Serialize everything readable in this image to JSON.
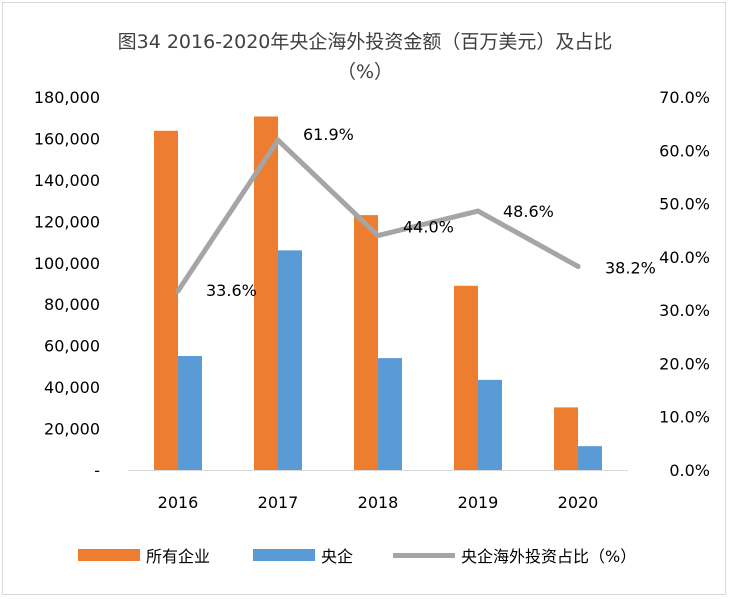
{
  "chart_data": {
    "type": "bar",
    "title": "图34 2016-2020年央企海外投资金额（百万美元）及占比",
    "title_line2": "（%）",
    "categories": [
      "2016",
      "2017",
      "2018",
      "2019",
      "2020"
    ],
    "series": [
      {
        "name": "所有企业",
        "type": "bar",
        "axis": "left",
        "color": "#ED7D31",
        "values": [
          163700,
          170600,
          123000,
          88900,
          30200
        ]
      },
      {
        "name": "央企",
        "type": "bar",
        "axis": "left",
        "color": "#5B9BD5",
        "values": [
          55000,
          106000,
          54000,
          43500,
          11500
        ]
      },
      {
        "name": "央企海外投资占比（%）",
        "type": "line",
        "axis": "right",
        "color": "#A5A5A5",
        "values": [
          33.6,
          61.9,
          44.0,
          48.6,
          38.2
        ],
        "labels": [
          "33.6%",
          "61.9%",
          "44.0%",
          "48.6%",
          "38.2%"
        ]
      }
    ],
    "y_left": {
      "min": 0,
      "max": 180000,
      "step": 20000,
      "tick_labels": [
        "-",
        "20,000",
        "40,000",
        "60,000",
        "80,000",
        "100,000",
        "120,000",
        "140,000",
        "160,000",
        "180,000"
      ]
    },
    "y_right": {
      "min": 0,
      "max": 70,
      "step": 10,
      "tick_labels": [
        "0.0%",
        "10.0%",
        "20.0%",
        "30.0%",
        "40.0%",
        "50.0%",
        "60.0%",
        "70.0%"
      ]
    },
    "grid": false,
    "legend_position": "bottom"
  }
}
